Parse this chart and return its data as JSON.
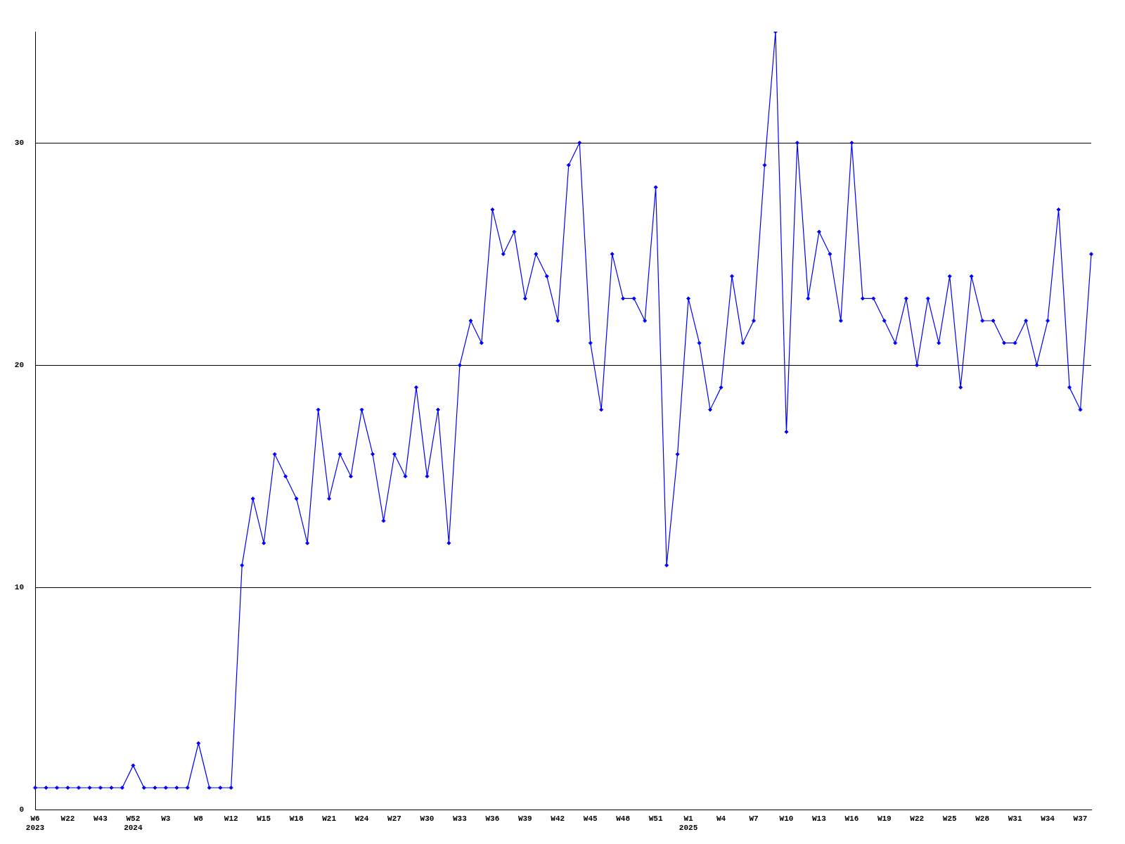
{
  "chart_data": {
    "type": "line",
    "categories": [
      "W6\n2023",
      null,
      null,
      "W22",
      null,
      null,
      "W43",
      null,
      null,
      "W52\n2024",
      null,
      null,
      "W3",
      null,
      null,
      "W8",
      null,
      null,
      "W12",
      null,
      null,
      "W15",
      null,
      null,
      "W18",
      null,
      null,
      "W21",
      null,
      null,
      "W24",
      null,
      null,
      "W27",
      null,
      null,
      "W30",
      null,
      null,
      "W33",
      null,
      null,
      "W36",
      null,
      null,
      "W39",
      null,
      null,
      "W42",
      null,
      null,
      "W45",
      null,
      null,
      "W48",
      null,
      null,
      "W51",
      null,
      null,
      "W1\n2025",
      null,
      null,
      "W4",
      null,
      null,
      "W7",
      null,
      null,
      "W10",
      null,
      null,
      "W13",
      null,
      null,
      "W16",
      null,
      null,
      "W19",
      null,
      null,
      "W22",
      null,
      null,
      "W25",
      null,
      null,
      "W28",
      null,
      null,
      "W31",
      null,
      null,
      "W34",
      null,
      null,
      "W37",
      null
    ],
    "series": [
      {
        "color": "#0000ff",
        "values": [
          1,
          1,
          1,
          1,
          1,
          1,
          1,
          1,
          1,
          2,
          1,
          1,
          1,
          1,
          1,
          3,
          1,
          1,
          1,
          11,
          14,
          12,
          16,
          15,
          14,
          12,
          18,
          14,
          16,
          15,
          18,
          16,
          13,
          16,
          15,
          19,
          15,
          18,
          12,
          20,
          22,
          21,
          27,
          25,
          26,
          23,
          25,
          24,
          22,
          29,
          30,
          21,
          18,
          25,
          23,
          23,
          22,
          28,
          11,
          16,
          23,
          21,
          18,
          19,
          24,
          21,
          22,
          29,
          35,
          17,
          30,
          23,
          26,
          25,
          22,
          30,
          23,
          23,
          22,
          21,
          23,
          20,
          23,
          21,
          24,
          19,
          24,
          22,
          22,
          21,
          21,
          22,
          20,
          22,
          27,
          19,
          18,
          25
        ]
      }
    ],
    "ylim": [
      0,
      35
    ],
    "yticks": [
      0,
      10,
      20,
      30
    ],
    "grid": "y",
    "legend": false,
    "marker": "diamond",
    "line_style": "solid"
  }
}
